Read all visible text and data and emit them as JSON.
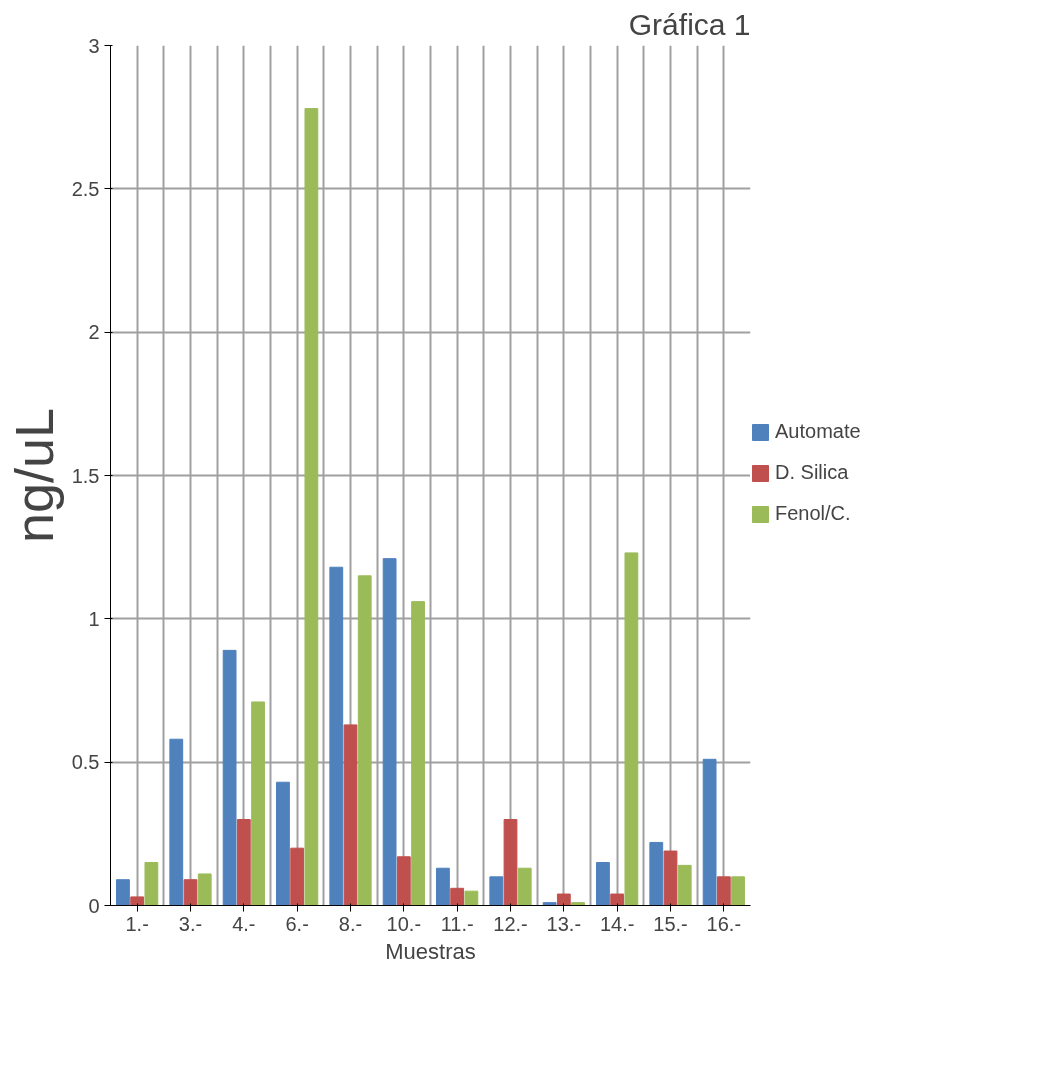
{
  "chart_data": {
    "type": "bar",
    "title": "Gráfica 1",
    "xlabel": "Muestras",
    "ylabel": "ng/uL",
    "categories": [
      "1.-",
      "3.-",
      "4.-",
      "6.-",
      "8.-",
      "10.-",
      "11.-",
      "12.-",
      "13.-",
      "14.-",
      "15.-",
      "16.-"
    ],
    "series": [
      {
        "name": "Automate",
        "color": "#4f81bd",
        "values": [
          0.09,
          0.58,
          0.89,
          0.43,
          1.18,
          1.21,
          0.13,
          0.1,
          0.01,
          0.15,
          0.22,
          0.51
        ]
      },
      {
        "name": "D. Silica",
        "color": "#c0504d",
        "values": [
          0.03,
          0.09,
          0.3,
          0.2,
          0.63,
          0.17,
          0.06,
          0.3,
          0.04,
          0.04,
          0.19,
          0.1
        ]
      },
      {
        "name": "Fenol/C.",
        "color": "#9bbb59",
        "values": [
          0.15,
          0.11,
          0.71,
          2.78,
          1.15,
          1.06,
          0.05,
          0.13,
          0.01,
          1.23,
          0.14,
          0.1
        ]
      }
    ],
    "ylim": [
      0,
      3
    ],
    "yticks": [
      0,
      0.5,
      1,
      1.5,
      2,
      2.5,
      3
    ],
    "grid": true,
    "legend": "right"
  }
}
